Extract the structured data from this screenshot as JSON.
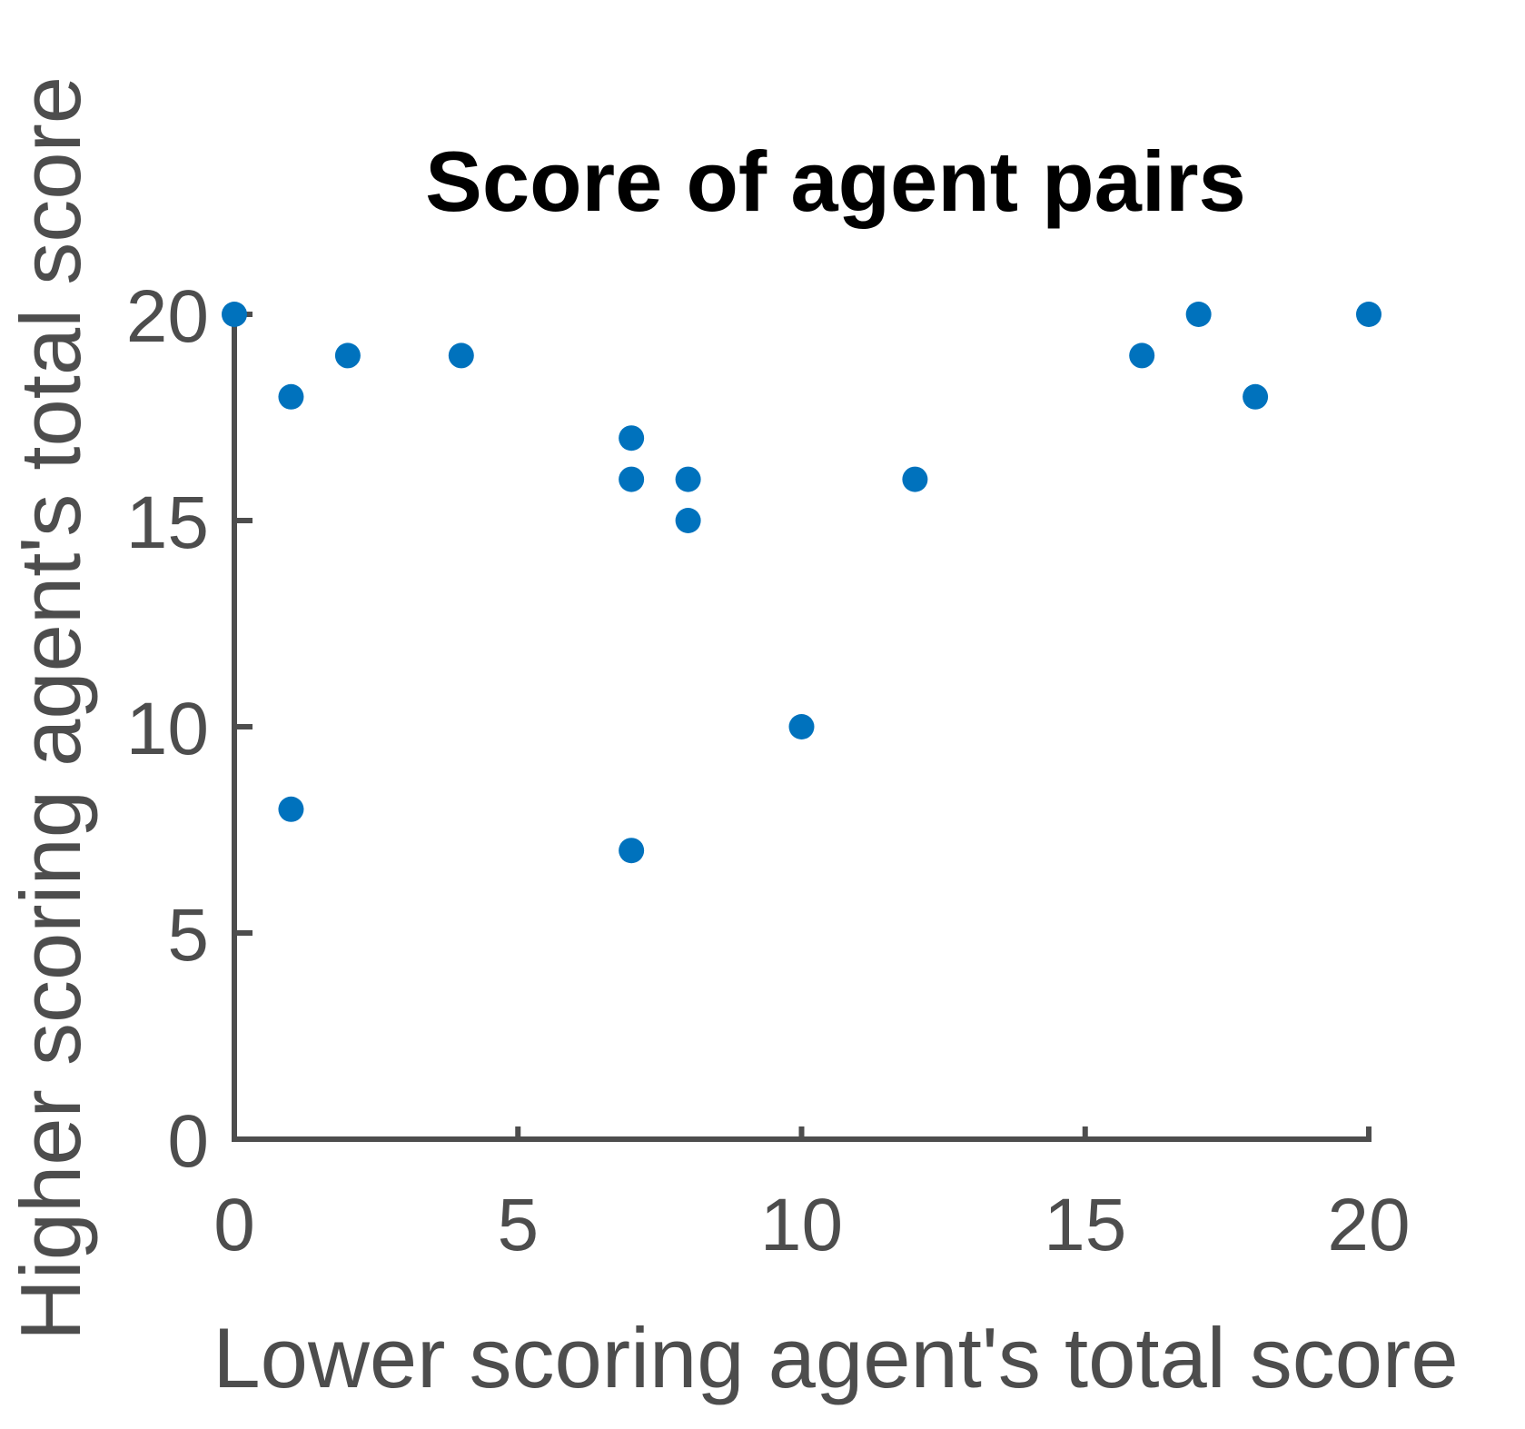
{
  "chart_data": {
    "type": "scatter",
    "title": "Score of agent pairs",
    "xlabel": "Lower scoring agent's total score",
    "ylabel": "Higher scoring agent's total score",
    "xlim": [
      0,
      20
    ],
    "ylim": [
      0,
      20
    ],
    "xticks": [
      0,
      5,
      10,
      15,
      20
    ],
    "yticks": [
      0,
      5,
      10,
      15,
      20
    ],
    "grid": false,
    "marker_color": "#0072BD",
    "axis_color": "#4d4d4d",
    "points": [
      {
        "x": 0,
        "y": 20
      },
      {
        "x": 1,
        "y": 18
      },
      {
        "x": 1,
        "y": 8
      },
      {
        "x": 2,
        "y": 19
      },
      {
        "x": 4,
        "y": 19
      },
      {
        "x": 7,
        "y": 17
      },
      {
        "x": 7,
        "y": 16
      },
      {
        "x": 7,
        "y": 7
      },
      {
        "x": 8,
        "y": 16
      },
      {
        "x": 8,
        "y": 15
      },
      {
        "x": 10,
        "y": 10
      },
      {
        "x": 12,
        "y": 16
      },
      {
        "x": 16,
        "y": 19
      },
      {
        "x": 17,
        "y": 20
      },
      {
        "x": 18,
        "y": 18
      },
      {
        "x": 20,
        "y": 20
      }
    ]
  }
}
